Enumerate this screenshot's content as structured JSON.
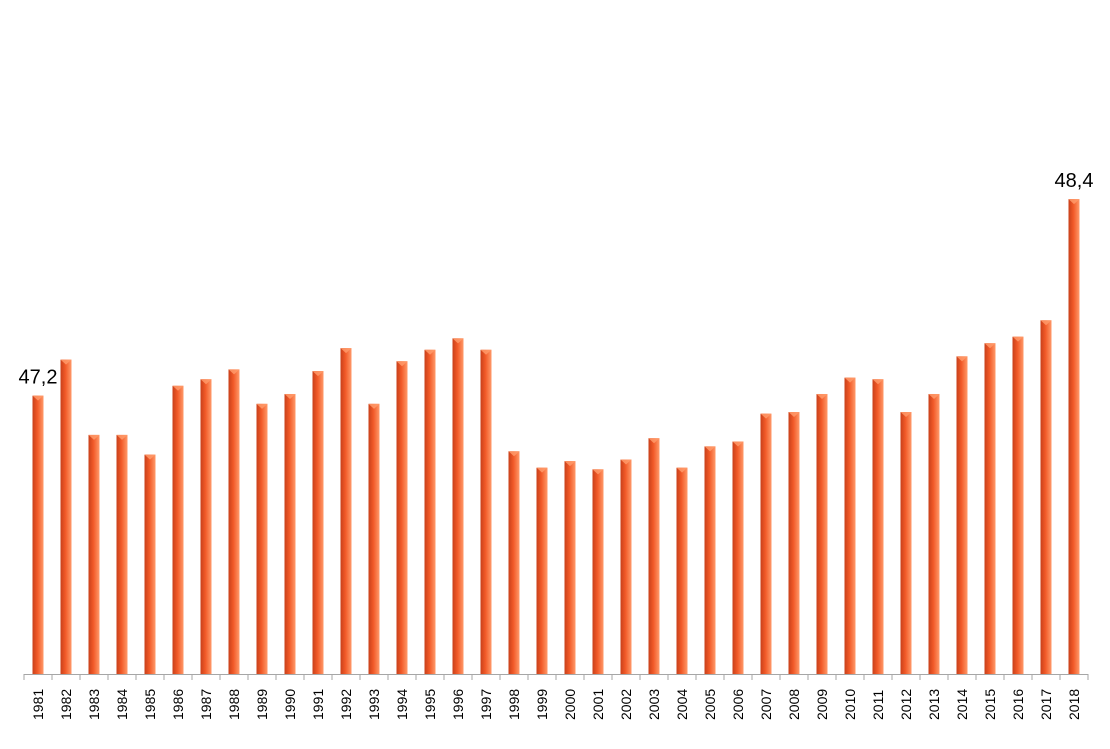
{
  "chart_data": {
    "type": "bar",
    "title": "",
    "xlabel": "",
    "ylabel": "",
    "categories": [
      "1981",
      "1982",
      "1983",
      "1984",
      "1985",
      "1986",
      "1987",
      "1988",
      "1989",
      "1990",
      "1991",
      "1992",
      "1993",
      "1994",
      "1995",
      "1996",
      "1997",
      "1998",
      "1999",
      "2000",
      "2001",
      "2002",
      "2003",
      "2004",
      "2005",
      "2006",
      "2007",
      "2008",
      "2009",
      "2010",
      "2011",
      "2012",
      "2013",
      "2014",
      "2015",
      "2016",
      "2017",
      "2018"
    ],
    "values": [
      47.2,
      47.42,
      46.96,
      46.96,
      46.84,
      47.26,
      47.3,
      47.36,
      47.15,
      47.21,
      47.35,
      47.49,
      47.15,
      47.41,
      47.48,
      47.55,
      47.48,
      46.86,
      46.76,
      46.8,
      46.75,
      46.81,
      46.94,
      46.76,
      46.89,
      46.92,
      47.09,
      47.1,
      47.21,
      47.31,
      47.3,
      47.1,
      47.21,
      47.44,
      47.52,
      47.56,
      47.66,
      48.4
    ],
    "data_labels": [
      {
        "category": "1981",
        "text": "47,2"
      },
      {
        "category": "2018",
        "text": "48,4"
      }
    ],
    "ylim": [
      45.5,
      49.5
    ],
    "grid": false,
    "legend": "none",
    "colors": {
      "bar": "#f25a28",
      "bar_light": "#ff9a6a",
      "bar_dark": "#c8401a",
      "axis": "#a6a6a6",
      "text": "#000000"
    }
  }
}
